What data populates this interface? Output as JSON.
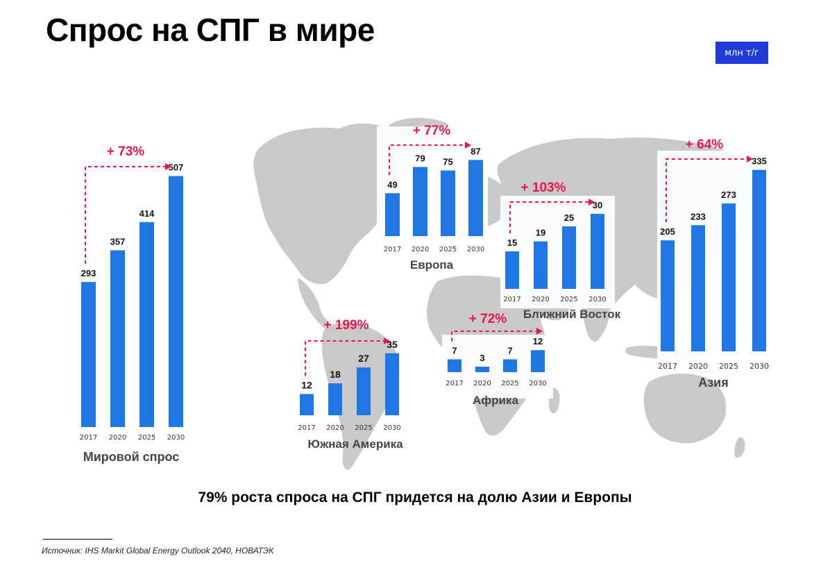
{
  "header": {
    "title": "Спрос на СПГ в мире",
    "unit_label": "млн т/г"
  },
  "footer": {
    "subtitle": "79% роста спроса на СПГ придется на долю Азии и Европы",
    "source": "Источник: IHS Markit Global Energy Outlook 2040, НОВАТЭК"
  },
  "colors": {
    "bar": "#1f77e6",
    "growth": "#e8174a",
    "map": "#c8c8c8"
  },
  "chart_data": [
    {
      "type": "bar",
      "title": "Мировой спрос",
      "categories": [
        "2017",
        "2020",
        "2025",
        "2030"
      ],
      "values": [
        293,
        357,
        414,
        507
      ],
      "growth_label": "+ 73%"
    },
    {
      "type": "bar",
      "title": "Европа",
      "categories": [
        "2017",
        "2020",
        "2025",
        "2030"
      ],
      "values": [
        49,
        79,
        75,
        87
      ],
      "growth_label": "+ 77%"
    },
    {
      "type": "bar",
      "title": "Ближний Восток",
      "categories": [
        "2017",
        "2020",
        "2025",
        "2030"
      ],
      "values": [
        15,
        19,
        25,
        30
      ],
      "growth_label": "+ 103%"
    },
    {
      "type": "bar",
      "title": "Азия",
      "categories": [
        "2017",
        "2020",
        "2025",
        "2030"
      ],
      "values": [
        205,
        233,
        273,
        335
      ],
      "growth_label": "+ 64%"
    },
    {
      "type": "bar",
      "title": "Южная Америка",
      "categories": [
        "2017",
        "2020",
        "2025",
        "2030"
      ],
      "values": [
        12,
        18,
        27,
        35
      ],
      "growth_label": "+ 199%"
    },
    {
      "type": "bar",
      "title": "Африка",
      "categories": [
        "2017",
        "2020",
        "2025",
        "2030"
      ],
      "values": [
        7,
        3,
        7,
        12
      ],
      "growth_label": "+ 72%"
    }
  ]
}
